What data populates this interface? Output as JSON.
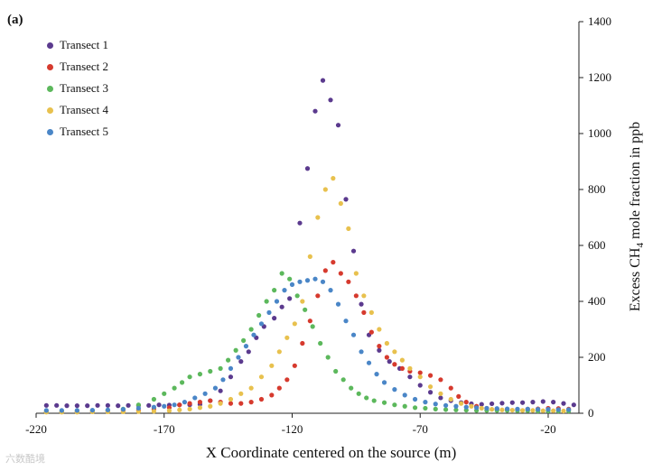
{
  "panel_label": "(a)",
  "watermark": "六数酷境",
  "chart_data": {
    "type": "scatter",
    "title": "",
    "xlabel": "X Coordinate centered on the source (m)",
    "ylabel_parts": {
      "before": "Excess CH",
      "sub": "4",
      "after": " mole fraction in ppb"
    },
    "xlim": [
      -220,
      -8
    ],
    "ylim": [
      0,
      1400
    ],
    "xticks": [
      -220,
      -170,
      -120,
      -70,
      -20
    ],
    "yticks": [
      0,
      200,
      400,
      600,
      800,
      1000,
      1200,
      1400
    ],
    "legend_position": "top-left",
    "series": [
      {
        "name": "Transect 1",
        "color": "#5b3a8e",
        "points": [
          [
            -216,
            28
          ],
          [
            -212,
            28
          ],
          [
            -208,
            27
          ],
          [
            -204,
            27
          ],
          [
            -200,
            27
          ],
          [
            -196,
            28
          ],
          [
            -192,
            28
          ],
          [
            -188,
            27
          ],
          [
            -184,
            28
          ],
          [
            -180,
            28
          ],
          [
            -176,
            28
          ],
          [
            -172,
            30
          ],
          [
            -168,
            29
          ],
          [
            -164,
            30
          ],
          [
            -160,
            30
          ],
          [
            -156,
            32
          ],
          [
            -152,
            45
          ],
          [
            -148,
            80
          ],
          [
            -144,
            130
          ],
          [
            -140,
            185
          ],
          [
            -137,
            220
          ],
          [
            -134,
            270
          ],
          [
            -131,
            310
          ],
          [
            -127,
            340
          ],
          [
            -124,
            380
          ],
          [
            -121,
            410
          ],
          [
            -117,
            680
          ],
          [
            -114,
            875
          ],
          [
            -111,
            1080
          ],
          [
            -108,
            1190
          ],
          [
            -105,
            1120
          ],
          [
            -102,
            1030
          ],
          [
            -99,
            765
          ],
          [
            -96,
            580
          ],
          [
            -93,
            390
          ],
          [
            -90,
            280
          ],
          [
            -86,
            225
          ],
          [
            -82,
            185
          ],
          [
            -78,
            160
          ],
          [
            -74,
            130
          ],
          [
            -70,
            100
          ],
          [
            -66,
            75
          ],
          [
            -62,
            55
          ],
          [
            -58,
            45
          ],
          [
            -54,
            38
          ],
          [
            -50,
            34
          ],
          [
            -46,
            32
          ],
          [
            -42,
            34
          ],
          [
            -38,
            36
          ],
          [
            -34,
            38
          ],
          [
            -30,
            38
          ],
          [
            -26,
            40
          ],
          [
            -22,
            42
          ],
          [
            -18,
            40
          ],
          [
            -14,
            35
          ],
          [
            -10,
            30
          ]
        ]
      },
      {
        "name": "Transect 2",
        "color": "#d63a2e",
        "points": [
          [
            -216,
            5
          ],
          [
            -210,
            5
          ],
          [
            -204,
            6
          ],
          [
            -198,
            6
          ],
          [
            -192,
            7
          ],
          [
            -186,
            8
          ],
          [
            -180,
            10
          ],
          [
            -174,
            15
          ],
          [
            -168,
            20
          ],
          [
            -164,
            30
          ],
          [
            -160,
            35
          ],
          [
            -156,
            40
          ],
          [
            -152,
            45
          ],
          [
            -148,
            40
          ],
          [
            -144,
            35
          ],
          [
            -140,
            35
          ],
          [
            -136,
            40
          ],
          [
            -132,
            50
          ],
          [
            -128,
            65
          ],
          [
            -125,
            90
          ],
          [
            -122,
            120
          ],
          [
            -119,
            170
          ],
          [
            -116,
            250
          ],
          [
            -113,
            330
          ],
          [
            -110,
            420
          ],
          [
            -107,
            510
          ],
          [
            -104,
            540
          ],
          [
            -101,
            500
          ],
          [
            -98,
            470
          ],
          [
            -95,
            420
          ],
          [
            -92,
            360
          ],
          [
            -89,
            290
          ],
          [
            -86,
            240
          ],
          [
            -83,
            200
          ],
          [
            -80,
            175
          ],
          [
            -77,
            160
          ],
          [
            -74,
            150
          ],
          [
            -70,
            145
          ],
          [
            -66,
            135
          ],
          [
            -62,
            120
          ],
          [
            -58,
            90
          ],
          [
            -55,
            60
          ],
          [
            -52,
            40
          ],
          [
            -48,
            25
          ],
          [
            -44,
            18
          ],
          [
            -40,
            15
          ],
          [
            -36,
            14
          ],
          [
            -32,
            14
          ],
          [
            -28,
            15
          ],
          [
            -24,
            16
          ],
          [
            -20,
            18
          ],
          [
            -16,
            17
          ],
          [
            -12,
            15
          ]
        ]
      },
      {
        "name": "Transect 3",
        "color": "#5cb85c",
        "points": [
          [
            -216,
            5
          ],
          [
            -210,
            6
          ],
          [
            -204,
            7
          ],
          [
            -198,
            8
          ],
          [
            -192,
            10
          ],
          [
            -186,
            15
          ],
          [
            -180,
            30
          ],
          [
            -174,
            50
          ],
          [
            -170,
            70
          ],
          [
            -166,
            90
          ],
          [
            -163,
            110
          ],
          [
            -160,
            130
          ],
          [
            -156,
            140
          ],
          [
            -152,
            150
          ],
          [
            -148,
            160
          ],
          [
            -145,
            190
          ],
          [
            -142,
            225
          ],
          [
            -139,
            260
          ],
          [
            -136,
            300
          ],
          [
            -133,
            350
          ],
          [
            -130,
            400
          ],
          [
            -127,
            440
          ],
          [
            -124,
            500
          ],
          [
            -121,
            480
          ],
          [
            -118,
            420
          ],
          [
            -115,
            370
          ],
          [
            -112,
            310
          ],
          [
            -109,
            250
          ],
          [
            -106,
            200
          ],
          [
            -103,
            150
          ],
          [
            -100,
            120
          ],
          [
            -97,
            90
          ],
          [
            -94,
            70
          ],
          [
            -91,
            55
          ],
          [
            -88,
            45
          ],
          [
            -84,
            38
          ],
          [
            -80,
            30
          ],
          [
            -76,
            25
          ],
          [
            -72,
            20
          ],
          [
            -68,
            18
          ],
          [
            -64,
            15
          ],
          [
            -60,
            13
          ],
          [
            -56,
            12
          ],
          [
            -52,
            11
          ],
          [
            -48,
            10
          ],
          [
            -44,
            10
          ],
          [
            -40,
            10
          ],
          [
            -36,
            10
          ],
          [
            -32,
            9
          ],
          [
            -28,
            9
          ],
          [
            -24,
            8
          ],
          [
            -20,
            8
          ],
          [
            -16,
            8
          ],
          [
            -12,
            8
          ]
        ]
      },
      {
        "name": "Transect 4",
        "color": "#e8c14e",
        "points": [
          [
            -216,
            4
          ],
          [
            -210,
            4
          ],
          [
            -204,
            4
          ],
          [
            -198,
            5
          ],
          [
            -192,
            5
          ],
          [
            -186,
            5
          ],
          [
            -180,
            6
          ],
          [
            -174,
            7
          ],
          [
            -168,
            9
          ],
          [
            -164,
            12
          ],
          [
            -160,
            15
          ],
          [
            -156,
            20
          ],
          [
            -152,
            25
          ],
          [
            -148,
            35
          ],
          [
            -144,
            50
          ],
          [
            -140,
            70
          ],
          [
            -136,
            90
          ],
          [
            -132,
            130
          ],
          [
            -128,
            170
          ],
          [
            -125,
            220
          ],
          [
            -122,
            270
          ],
          [
            -119,
            320
          ],
          [
            -116,
            400
          ],
          [
            -113,
            560
          ],
          [
            -110,
            700
          ],
          [
            -107,
            800
          ],
          [
            -104,
            840
          ],
          [
            -101,
            750
          ],
          [
            -98,
            660
          ],
          [
            -95,
            500
          ],
          [
            -92,
            420
          ],
          [
            -89,
            360
          ],
          [
            -86,
            300
          ],
          [
            -83,
            250
          ],
          [
            -80,
            220
          ],
          [
            -77,
            190
          ],
          [
            -74,
            160
          ],
          [
            -70,
            130
          ],
          [
            -66,
            95
          ],
          [
            -62,
            70
          ],
          [
            -58,
            50
          ],
          [
            -54,
            35
          ],
          [
            -50,
            25
          ],
          [
            -46,
            18
          ],
          [
            -42,
            14
          ],
          [
            -38,
            12
          ],
          [
            -34,
            11
          ],
          [
            -30,
            10
          ],
          [
            -26,
            10
          ],
          [
            -22,
            9
          ],
          [
            -18,
            9
          ],
          [
            -14,
            8
          ]
        ]
      },
      {
        "name": "Transect 5",
        "color": "#4a86c7",
        "points": [
          [
            -216,
            10
          ],
          [
            -210,
            10
          ],
          [
            -204,
            10
          ],
          [
            -198,
            11
          ],
          [
            -192,
            12
          ],
          [
            -186,
            14
          ],
          [
            -180,
            18
          ],
          [
            -174,
            22
          ],
          [
            -170,
            25
          ],
          [
            -166,
            30
          ],
          [
            -162,
            40
          ],
          [
            -158,
            55
          ],
          [
            -154,
            70
          ],
          [
            -150,
            90
          ],
          [
            -147,
            120
          ],
          [
            -144,
            160
          ],
          [
            -141,
            200
          ],
          [
            -138,
            240
          ],
          [
            -135,
            280
          ],
          [
            -132,
            320
          ],
          [
            -129,
            360
          ],
          [
            -126,
            400
          ],
          [
            -123,
            440
          ],
          [
            -120,
            460
          ],
          [
            -117,
            470
          ],
          [
            -114,
            475
          ],
          [
            -111,
            480
          ],
          [
            -108,
            470
          ],
          [
            -105,
            440
          ],
          [
            -102,
            390
          ],
          [
            -99,
            330
          ],
          [
            -96,
            280
          ],
          [
            -93,
            220
          ],
          [
            -90,
            180
          ],
          [
            -87,
            140
          ],
          [
            -84,
            110
          ],
          [
            -80,
            85
          ],
          [
            -76,
            65
          ],
          [
            -72,
            50
          ],
          [
            -68,
            40
          ],
          [
            -64,
            33
          ],
          [
            -60,
            28
          ],
          [
            -56,
            25
          ],
          [
            -52,
            22
          ],
          [
            -48,
            20
          ],
          [
            -44,
            18
          ],
          [
            -40,
            17
          ],
          [
            -36,
            16
          ],
          [
            -32,
            15
          ],
          [
            -28,
            15
          ],
          [
            -24,
            14
          ],
          [
            -20,
            14
          ],
          [
            -16,
            13
          ],
          [
            -12,
            13
          ]
        ]
      }
    ]
  }
}
